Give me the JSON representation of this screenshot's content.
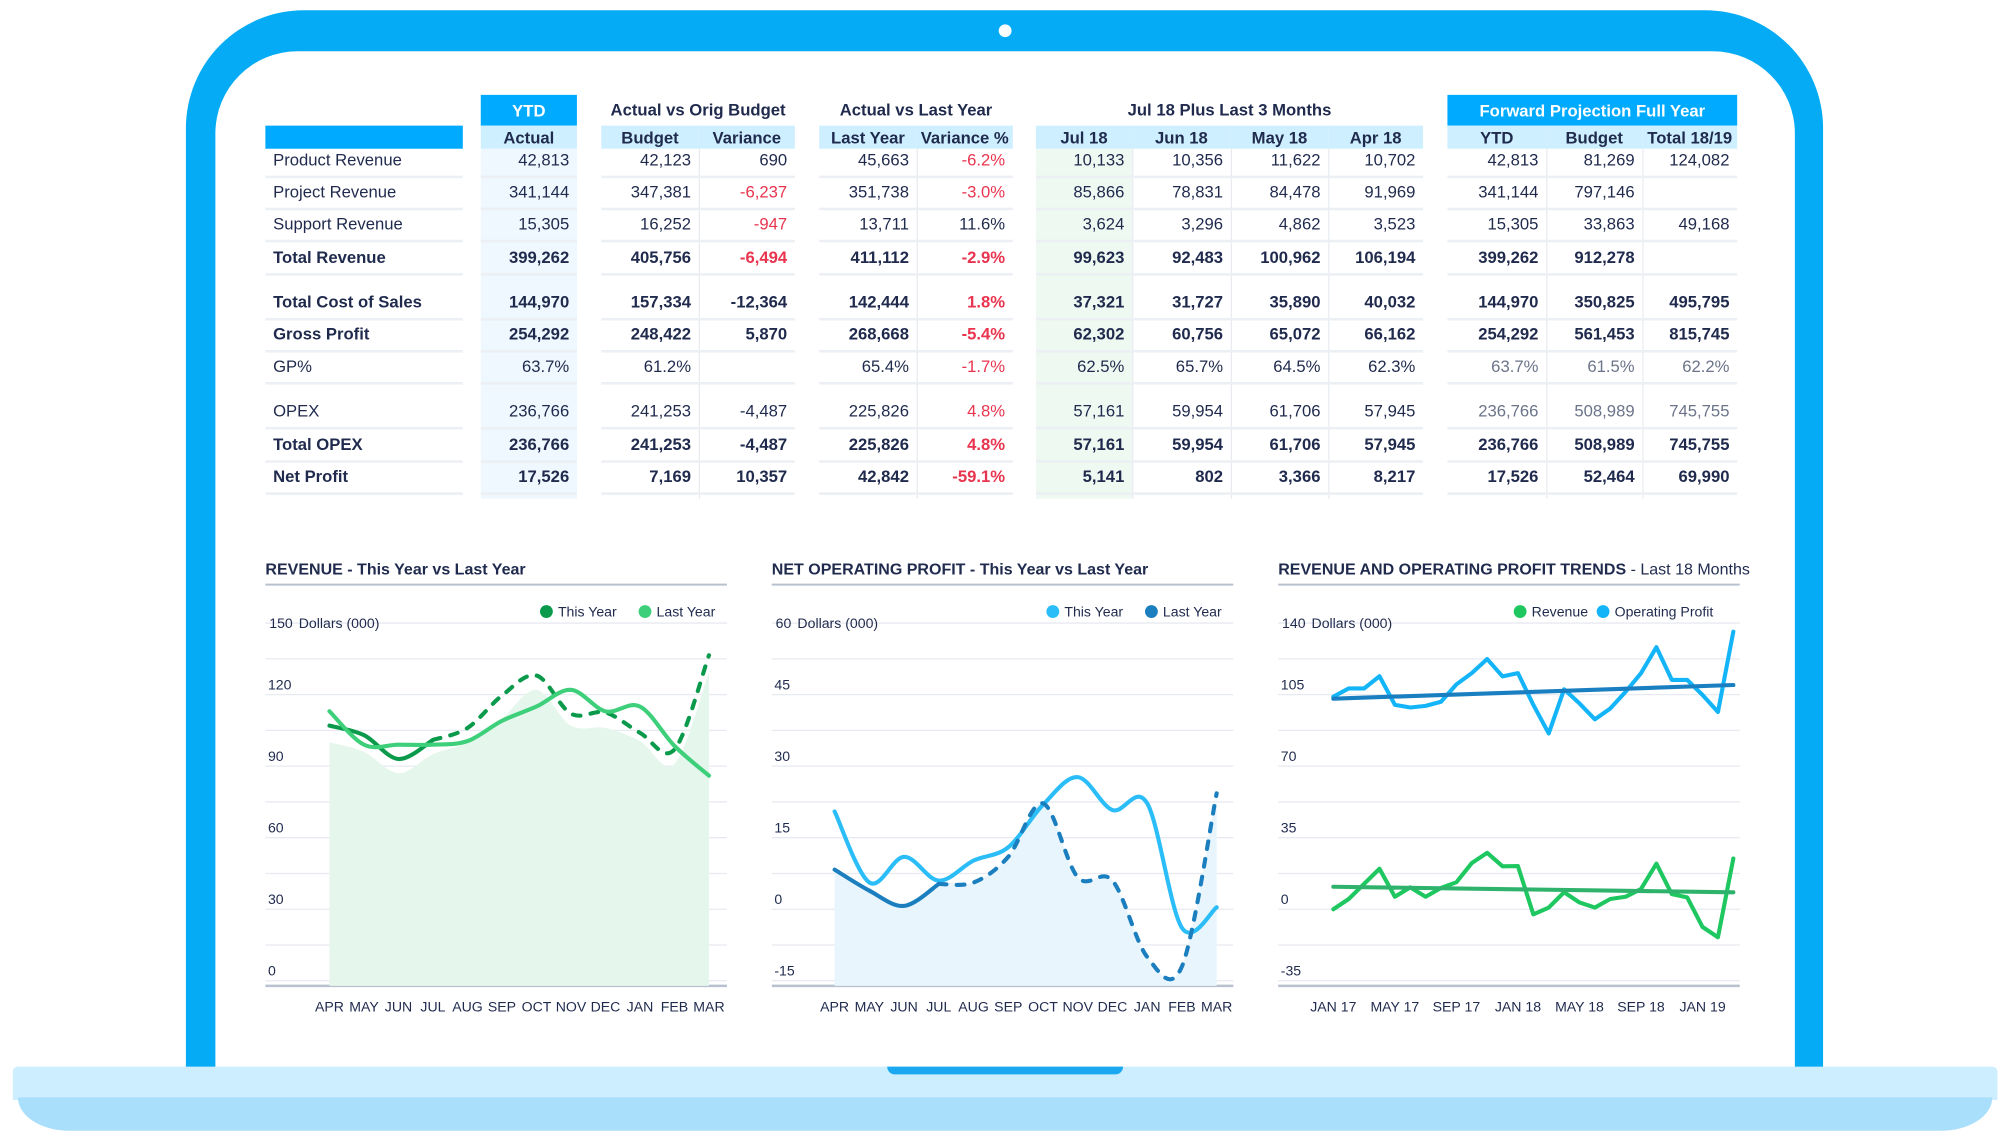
{
  "table": {
    "group_headers": {
      "ytd": "YTD",
      "budget_group": "Actual vs Orig Budget",
      "last_year_group": "Actual vs Last Year",
      "months_group": "Jul 18 Plus Last 3 Months",
      "forward_group": "Forward Projection Full Year"
    },
    "columns": [
      "Actual",
      "Budget",
      "Variance",
      "Last Year",
      "Variance %",
      "Jul 18",
      "Jun 18",
      "May 18",
      "Apr 18",
      "YTD",
      "Budget",
      "Total 18/19"
    ],
    "rows": [
      {
        "label": "Product Revenue",
        "bold": false,
        "values": [
          "42,813",
          "42,123",
          "690",
          "45,663",
          "-6.2%",
          "10,133",
          "10,356",
          "11,622",
          "10,702",
          "42,813",
          "81,269",
          "124,082"
        ],
        "red": [
          4
        ]
      },
      {
        "label": "Project Revenue",
        "bold": false,
        "values": [
          "341,144",
          "347,381",
          "-6,237",
          "351,738",
          "-3.0%",
          "85,866",
          "78,831",
          "84,478",
          "91,969",
          "341,144",
          "797,146",
          ""
        ],
        "red": [
          2,
          4
        ]
      },
      {
        "label": "Support Revenue",
        "bold": false,
        "values": [
          "15,305",
          "16,252",
          "-947",
          "13,711",
          "11.6%",
          "3,624",
          "3,296",
          "4,862",
          "3,523",
          "15,305",
          "33,863",
          "49,168"
        ],
        "red": [
          2
        ]
      },
      {
        "label": "Total Revenue",
        "bold": true,
        "values": [
          "399,262",
          "405,756",
          "-6,494",
          "411,112",
          "-2.9%",
          "99,623",
          "92,483",
          "100,962",
          "106,194",
          "399,262",
          "912,278",
          ""
        ],
        "red": [
          2,
          4
        ]
      },
      {
        "label": "Total Cost of Sales",
        "bold": true,
        "values": [
          "144,970",
          "157,334",
          "-12,364",
          "142,444",
          "1.8%",
          "37,321",
          "31,727",
          "35,890",
          "40,032",
          "144,970",
          "350,825",
          "495,795"
        ],
        "red": [
          4
        ]
      },
      {
        "label": "Gross Profit",
        "bold": true,
        "values": [
          "254,292",
          "248,422",
          "5,870",
          "268,668",
          "-5.4%",
          "62,302",
          "60,756",
          "65,072",
          "66,162",
          "254,292",
          "561,453",
          "815,745"
        ],
        "red": [
          4
        ]
      },
      {
        "label": "GP%",
        "bold": false,
        "forward_muted": true,
        "values": [
          "63.7%",
          "61.2%",
          "",
          "65.4%",
          "-1.7%",
          "62.5%",
          "65.7%",
          "64.5%",
          "62.3%",
          "63.7%",
          "61.5%",
          "62.2%"
        ],
        "red": [
          4
        ]
      },
      {
        "label": "OPEX",
        "bold": false,
        "forward_muted": true,
        "values": [
          "236,766",
          "241,253",
          "-4,487",
          "225,826",
          "4.8%",
          "57,161",
          "59,954",
          "61,706",
          "57,945",
          "236,766",
          "508,989",
          "745,755"
        ],
        "red": [
          4
        ]
      },
      {
        "label": "Total OPEX",
        "bold": true,
        "values": [
          "236,766",
          "241,253",
          "-4,487",
          "225,826",
          "4.8%",
          "57,161",
          "59,954",
          "61,706",
          "57,945",
          "236,766",
          "508,989",
          "745,755"
        ],
        "red": [
          4
        ]
      },
      {
        "label": "Net Profit",
        "bold": true,
        "values": [
          "17,526",
          "7,169",
          "10,357",
          "42,842",
          "-59.1%",
          "5,141",
          "802",
          "3,366",
          "8,217",
          "17,526",
          "52,464",
          "69,990"
        ],
        "red": [
          4
        ]
      }
    ],
    "colors": {
      "header_blue": "#00aaff",
      "header_light": "#cdefff",
      "negative": "#e8344e",
      "text": "#1f2a4d"
    }
  },
  "chart_data": [
    {
      "type": "line",
      "title": "REVENUE - This Year vs Last Year",
      "ylabel": "Dollars (000)",
      "ylim": [
        0,
        150
      ],
      "yticks": [
        0,
        30,
        60,
        90,
        120,
        150
      ],
      "grid": true,
      "legend": "top-right",
      "categories": [
        "APR",
        "MAY",
        "JUN",
        "JUL",
        "AUG",
        "SEP",
        "OCT",
        "NOV",
        "DEC",
        "JAN",
        "FEB",
        "MAR"
      ],
      "series": [
        {
          "name": "This Year",
          "color": "#0b9a4c",
          "solid_until": "JUL",
          "values": [
            107,
            103,
            93,
            101,
            106,
            119.6,
            128,
            112,
            112.5,
            104,
            97,
            136.5
          ]
        },
        {
          "name": "Last Year",
          "color": "#3dcf7a",
          "values": [
            113,
            99,
            99,
            99,
            100.5,
            109,
            115,
            122,
            113,
            115,
            98.5,
            86
          ]
        }
      ],
      "area": {
        "color": "#e5f6ec",
        "values": [
          100,
          96,
          87,
          95,
          100,
          110,
          122,
          107,
          106,
          100.5,
          91,
          129.5
        ]
      }
    },
    {
      "type": "line",
      "title": "NET OPERATING PROFIT - This Year vs Last Year",
      "ylabel": "Dollars (000)",
      "ylim": [
        -15,
        60
      ],
      "yticks": [
        -15,
        0,
        15,
        30,
        45,
        60
      ],
      "grid": true,
      "legend": "top-right",
      "categories": [
        "APR",
        "MAY",
        "JUN",
        "JUL",
        "AUG",
        "SEP",
        "OCT",
        "NOV",
        "DEC",
        "JAN",
        "FEB",
        "MAR"
      ],
      "series": [
        {
          "name": "This Year",
          "color": "#2bbdf7",
          "values": [
            20.5,
            5.6,
            11,
            6,
            10.2,
            13,
            21.9,
            27.7,
            20.8,
            22.2,
            -3.9,
            0.4
          ]
        },
        {
          "name": "Last Year",
          "color": "#1b7fbf",
          "solid_until": "JUL",
          "values": [
            8.3,
            3.9,
            0.7,
            5.3,
            5.6,
            11,
            22.2,
            6.7,
            6,
            -10,
            -12,
            24.3
          ]
        }
      ],
      "area": {
        "color": "#e8f5fc",
        "values": [
          8.3,
          3.9,
          0.7,
          5.3,
          5.6,
          11,
          22.2,
          6.7,
          6,
          -10,
          -12,
          24.3
        ]
      }
    },
    {
      "type": "line",
      "title": "REVENUE AND OPERATING PROFIT TRENDS",
      "subtitle": "Last 18 Months",
      "ylabel": "Dollars (000)",
      "ylim": [
        -35,
        140
      ],
      "yticks": [
        -35,
        0,
        35,
        70,
        105,
        140
      ],
      "grid": true,
      "legend": "top-right",
      "x": [
        "Jan 17",
        "Feb 17",
        "Mar 17",
        "Apr 17",
        "May 17",
        "Jun 17",
        "Jul 17",
        "Aug 17",
        "Sep 17",
        "Oct 17",
        "Nov 17",
        "Dec 17",
        "Jan 18",
        "Feb 18",
        "Mar 18",
        "Apr 18",
        "May 18",
        "Jun 18",
        "Jul 18",
        "Aug 18",
        "Sep 18",
        "Oct 18",
        "Nov 18",
        "Dec 18",
        "Jan 19",
        "Feb 19",
        "Mar 19"
      ],
      "x_tick_labels": [
        {
          "label": "JAN 17",
          "index": 0
        },
        {
          "label": "MAY 17",
          "index": 4
        },
        {
          "label": "SEP 17",
          "index": 8
        },
        {
          "label": "JAN 18",
          "index": 12
        },
        {
          "label": "MAY 18",
          "index": 16
        },
        {
          "label": "SEP 18",
          "index": 20
        },
        {
          "label": "JAN 19",
          "index": 24
        }
      ],
      "series": [
        {
          "name": "Revenue",
          "color": "#1ec760",
          "trend_color": "#2fb36c",
          "trend": [
            11,
            8.3
          ],
          "values": [
            0,
            5,
            12.4,
            19.8,
            6.1,
            10.7,
            6.1,
            10.4,
            13.2,
            22.6,
            27.6,
            21,
            21.1,
            -2.5,
            0.8,
            8.3,
            3.3,
            0.8,
            5,
            6.1,
            9.9,
            22.3,
            7.4,
            5.8,
            -8.7,
            -13.7,
            24.8
          ]
        },
        {
          "name": "Operating Profit",
          "color": "#14b5f8",
          "trend_color": "#1a7fc1",
          "trend": [
            103,
            109.7
          ],
          "values": [
            104,
            108,
            108,
            114,
            100,
            98.7,
            99.5,
            101.5,
            110,
            115.5,
            122.4,
            113.9,
            115.5,
            100,
            86,
            107.6,
            100.7,
            92.9,
            98.2,
            106.4,
            115.5,
            128.2,
            112.2,
            112.2,
            104.8,
            96.5,
            135.8
          ]
        }
      ]
    }
  ]
}
